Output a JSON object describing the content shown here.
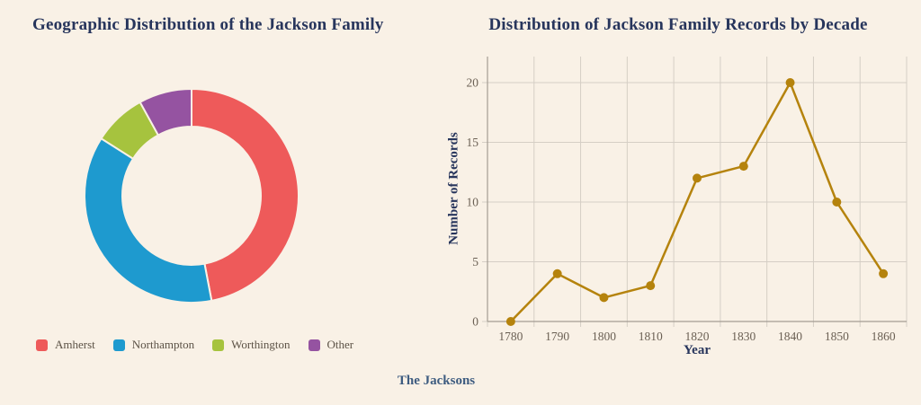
{
  "page": {
    "footer": "The Jacksons"
  },
  "theme": {
    "background": "#F9F1E6",
    "title_color": "#27355C",
    "tick_color": "#6B6054",
    "legend_text_color": "#5C5246",
    "grid_color": "#D5CEC5",
    "axis_color": "#A49D93",
    "footer_color": "#3E5C80",
    "slice_border_color": "#F9F1E6"
  },
  "chart_data": [
    {
      "type": "pie",
      "style": "doughnut",
      "title": "Geographic Distribution of the Jackson Family",
      "labels": [
        "Amherst",
        "Northampton",
        "Worthington",
        "Other"
      ],
      "values": [
        47,
        37,
        8,
        8
      ],
      "unit": "percent",
      "colors": [
        "#EE5A5A",
        "#1E9ACF",
        "#A6C33E",
        "#9553A1"
      ],
      "legend_position": "bottom-left",
      "start_angle_deg": 0,
      "direction": "clockwise"
    },
    {
      "type": "line",
      "title": "Distribution of Jackson Family Records by Decade",
      "categories": [
        "1780",
        "1790",
        "1800",
        "1810",
        "1820",
        "1830",
        "1840",
        "1850",
        "1860"
      ],
      "values": [
        0,
        4,
        2,
        3,
        12,
        13,
        20,
        10,
        4
      ],
      "xlabel": "Year",
      "ylabel": "Number of Records",
      "ylim": [
        0,
        22
      ],
      "yticks": [
        0,
        5,
        10,
        15,
        20
      ],
      "line_color": "#B5830D",
      "point_color": "#B5830D",
      "grid": "on",
      "legend_position": "none"
    }
  ]
}
